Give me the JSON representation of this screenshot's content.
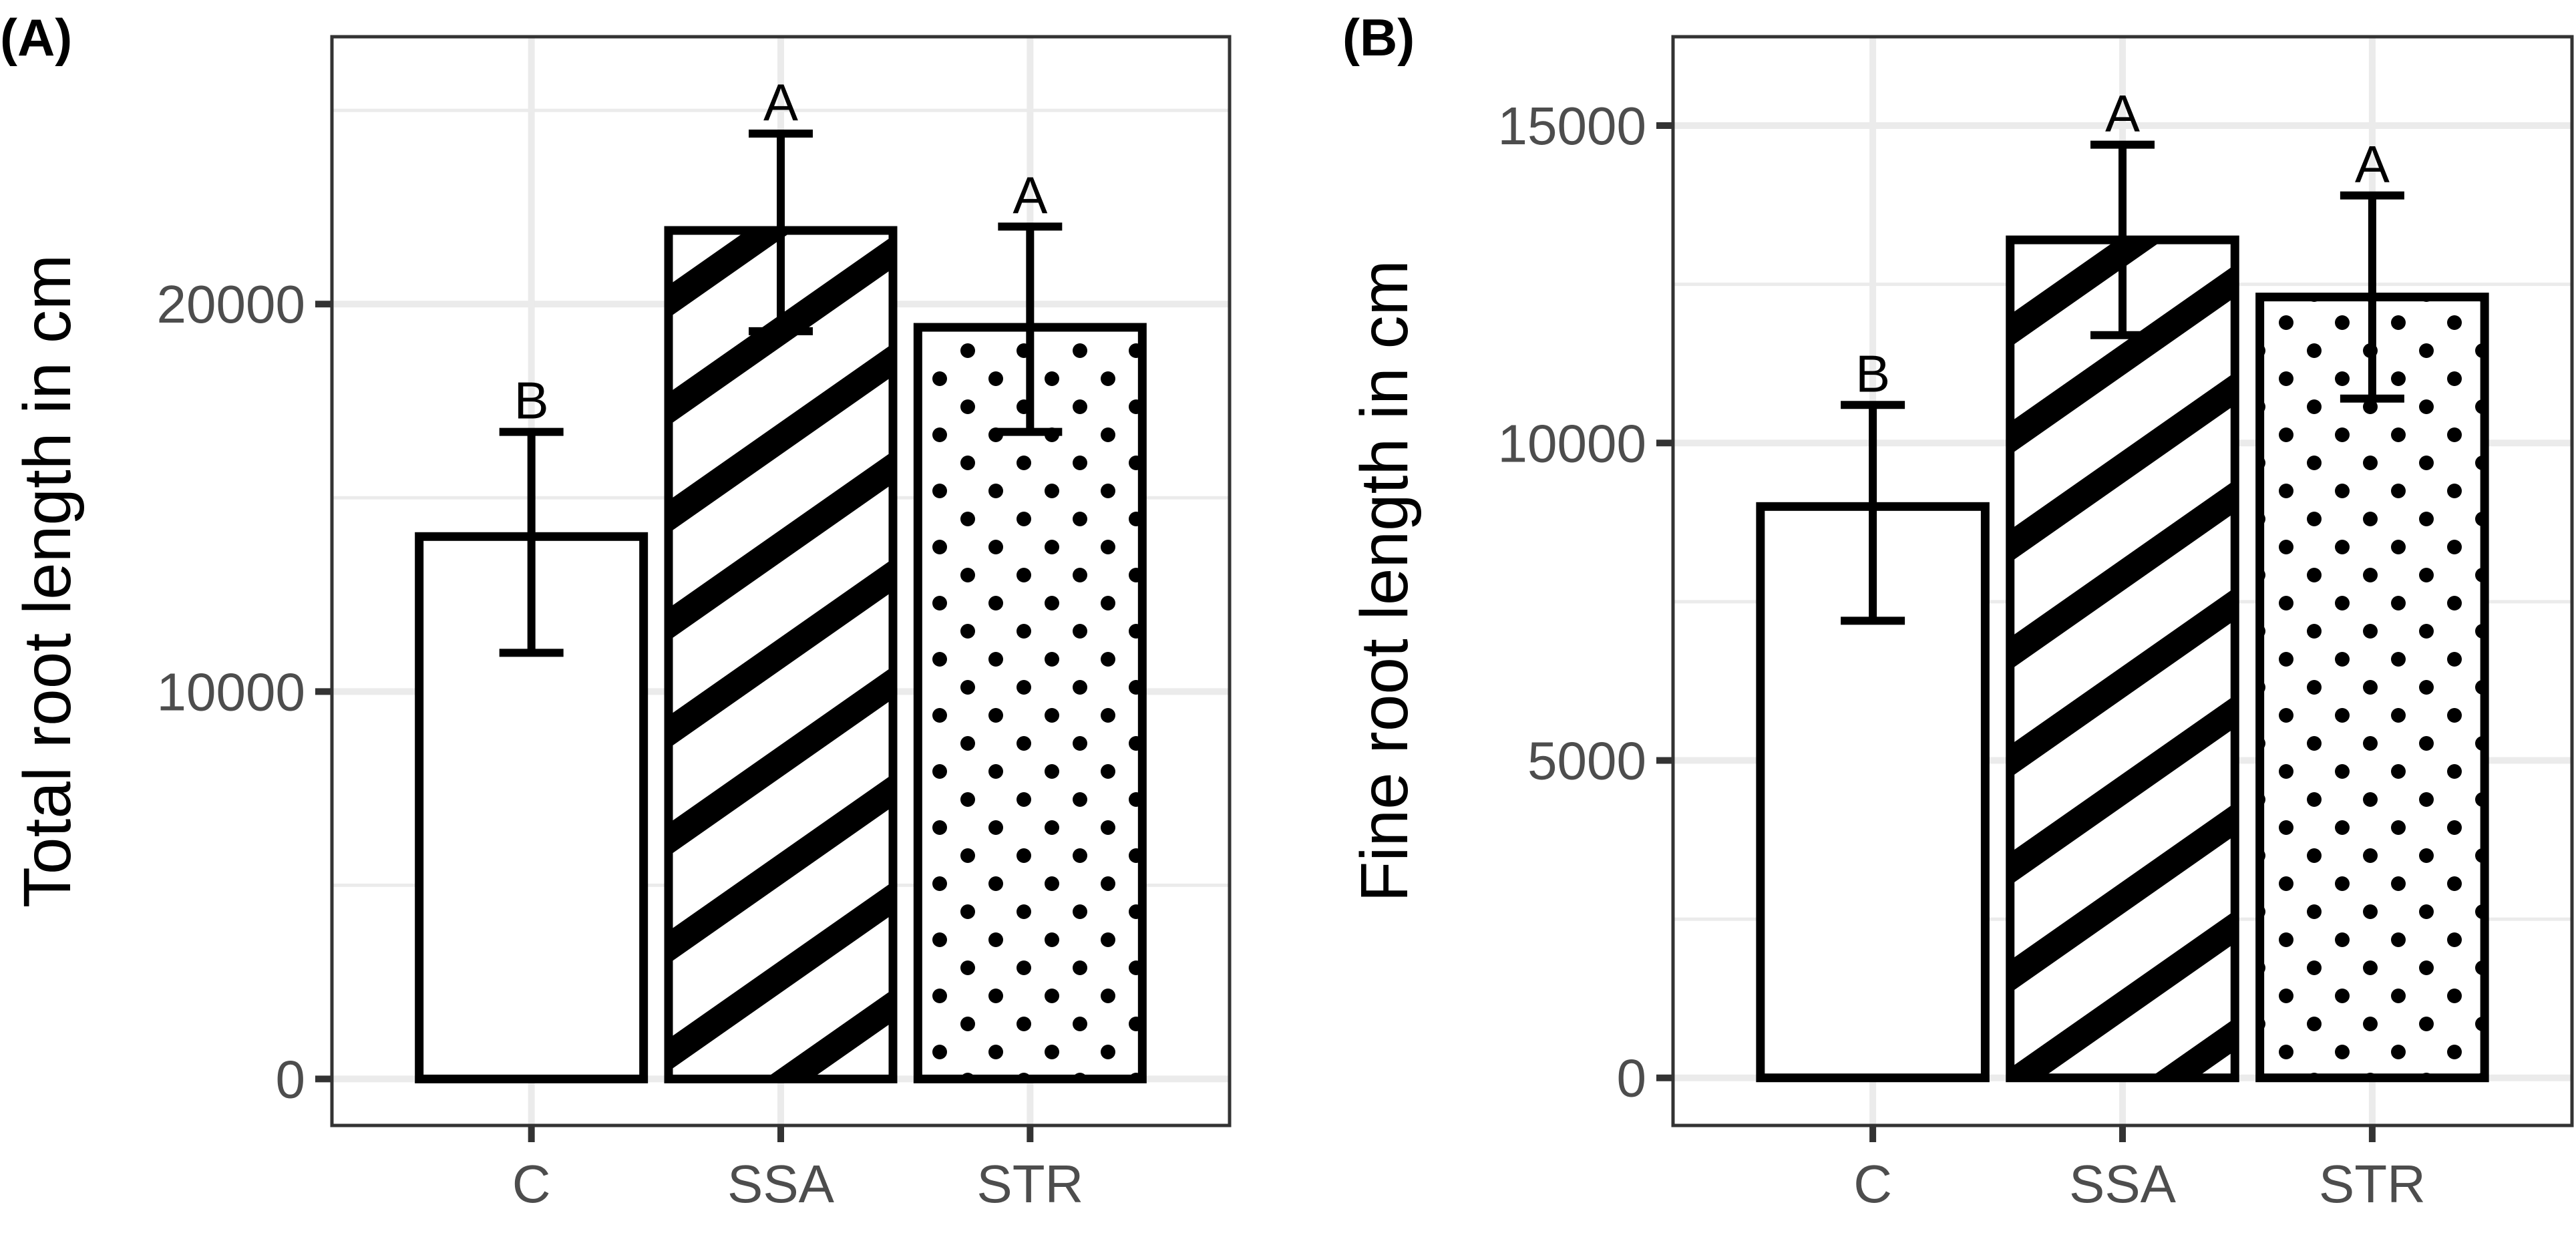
{
  "chart_data": [
    {
      "type": "bar",
      "panel_label": "(A)",
      "categories": [
        "C",
        "SSA",
        "STR"
      ],
      "values": [
        14000,
        21900,
        19400
      ],
      "error_low": [
        11000,
        19300,
        16700
      ],
      "error_high": [
        16700,
        24400,
        22000
      ],
      "significance": [
        "B",
        "A",
        "A"
      ],
      "patterns": [
        "none",
        "hatch",
        "dots"
      ],
      "ylabel": "Total root length in cm",
      "xlabel": "",
      "ylim": [
        -1200,
        26900
      ],
      "yticks": [
        0,
        10000,
        20000
      ],
      "minor_yticks": [
        5000,
        15000,
        25000
      ],
      "grid": true
    },
    {
      "type": "bar",
      "panel_label": "(B)",
      "categories": [
        "C",
        "SSA",
        "STR"
      ],
      "values": [
        9000,
        13200,
        12300
      ],
      "error_low": [
        7200,
        11700,
        10700
      ],
      "error_high": [
        10600,
        14700,
        13900
      ],
      "significance": [
        "B",
        "A",
        "A"
      ],
      "patterns": [
        "none",
        "hatch",
        "dots"
      ],
      "ylabel": "Fine root length in cm",
      "xlabel": "",
      "ylim": [
        -750,
        16400
      ],
      "yticks": [
        0,
        5000,
        10000,
        15000
      ],
      "minor_yticks": [
        2500,
        7500,
        12500
      ],
      "grid": true
    }
  ],
  "colors": {
    "bar_fill": "#ffffff",
    "bar_stroke": "#000000",
    "grid": "#ebebeb",
    "panel_border": "#333333",
    "tick": "#333333",
    "tick_label": "#4d4d4d"
  }
}
